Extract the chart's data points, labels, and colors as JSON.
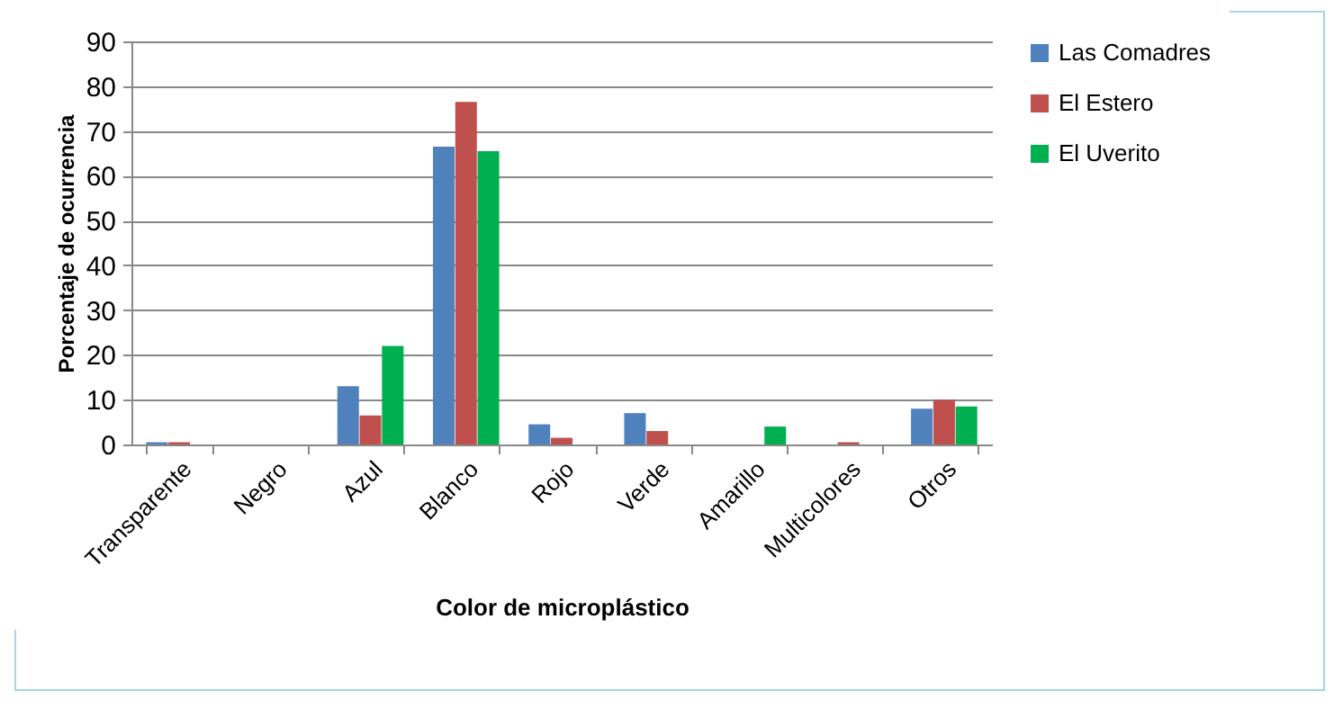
{
  "chart_data": {
    "type": "bar",
    "xlabel": "Color de microplástico",
    "ylabel": "Porcentaje de ocurrencia",
    "categories": [
      "Transparente",
      "Negro",
      "Azul",
      "Blanco",
      "Rojo",
      "Verde",
      "Amarillo",
      "Multicolores",
      "Otros"
    ],
    "series": [
      {
        "name": "Las Comadres",
        "color": "#4f81bd",
        "values": [
          0.5,
          0,
          13,
          66.5,
          4.5,
          7,
          0,
          0,
          8
        ]
      },
      {
        "name": "El Estero",
        "color": "#c0504d",
        "values": [
          0.5,
          0,
          6.5,
          76.5,
          1.5,
          3,
          0,
          0.5,
          10
        ]
      },
      {
        "name": "El Uverito",
        "color": "#00b050",
        "values": [
          0,
          0,
          22,
          65.5,
          0,
          0,
          4,
          0,
          8.5
        ]
      }
    ],
    "ylim": [
      0,
      90
    ],
    "yticks": [
      0,
      10,
      20,
      30,
      40,
      50,
      60,
      70,
      80,
      90
    ],
    "grid": "y",
    "legend": "right"
  }
}
